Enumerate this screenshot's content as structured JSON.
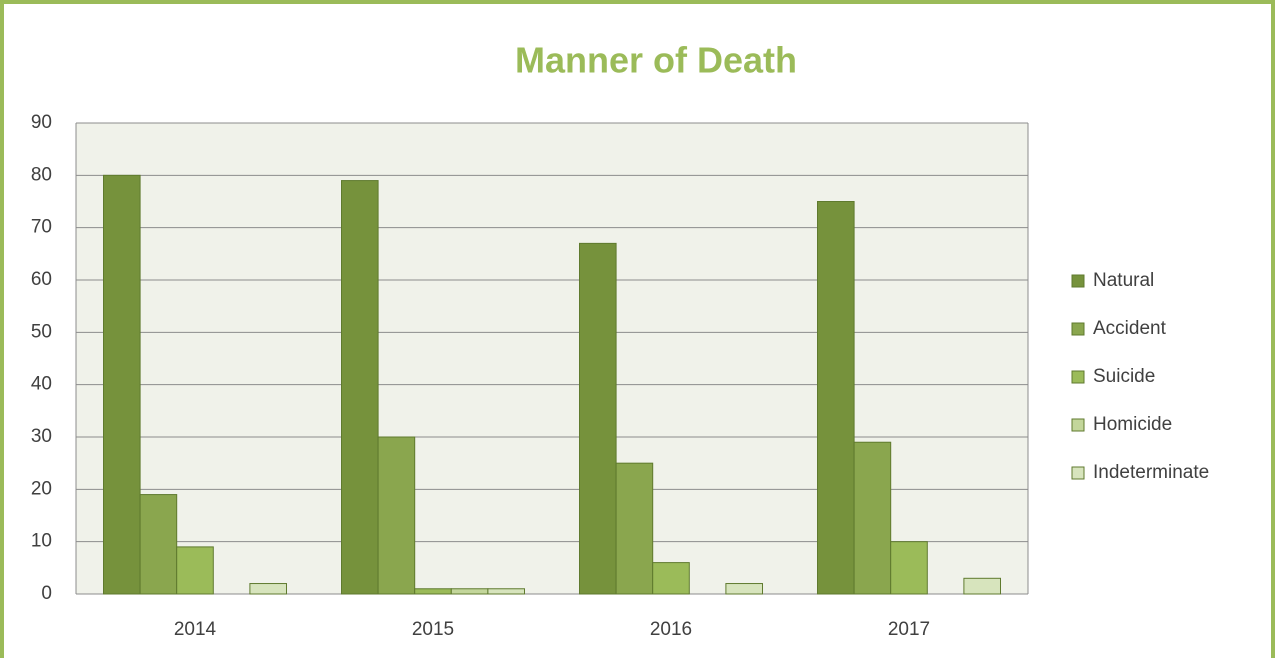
{
  "chart_data": {
    "type": "bar",
    "title": "Manner of Death",
    "categories": [
      "2014",
      "2015",
      "2016",
      "2017"
    ],
    "series": [
      {
        "name": "Natural",
        "color": "#76923c",
        "values": [
          80,
          79,
          67,
          75
        ]
      },
      {
        "name": "Accident",
        "color": "#8aa64e",
        "values": [
          19,
          30,
          25,
          29
        ]
      },
      {
        "name": "Suicide",
        "color": "#9bbb59",
        "values": [
          9,
          1,
          6,
          10
        ]
      },
      {
        "name": "Homicide",
        "color": "#c3d69b",
        "values": [
          0,
          1,
          0,
          0
        ]
      },
      {
        "name": "Indeterminate",
        "color": "#d7e4bd",
        "values": [
          2,
          1,
          2,
          3
        ]
      }
    ],
    "ylim": [
      0,
      90
    ],
    "yticks": [
      0,
      10,
      20,
      30,
      40,
      50,
      60,
      70,
      80,
      90
    ],
    "grid": true,
    "legend": "right"
  }
}
